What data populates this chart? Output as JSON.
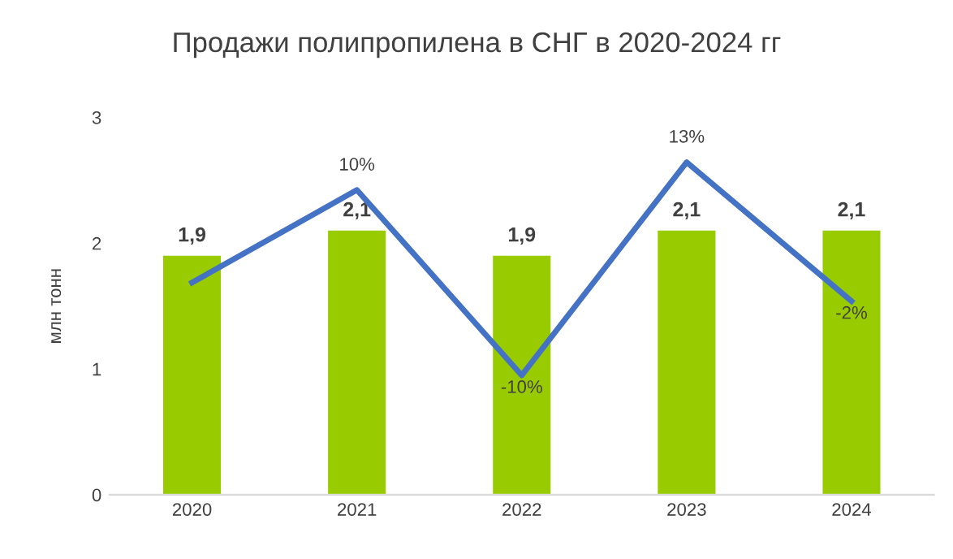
{
  "chart_data": {
    "type": "bar",
    "title": "Продажи полипропилена в СНГ в 2020-2024 гг",
    "ylabel": "млн тонн",
    "categories": [
      "2020",
      "2021",
      "2022",
      "2023",
      "2024"
    ],
    "ylim": [
      0,
      3
    ],
    "yticks": [
      0,
      1,
      2,
      3
    ],
    "grid": false,
    "legend": false,
    "series": [
      {
        "color": "#99cc00",
        "values": [
          1.9,
          2.1,
          1.9,
          2.1,
          2.1
        ],
        "value_labels": [
          "1,9",
          "2,1",
          "1,9",
          "2,1",
          "2,1"
        ]
      },
      {
        "type": "line",
        "axis": "y2",
        "color": "#4472c4",
        "values": [
          0,
          10,
          -10,
          13,
          -2
        ],
        "value_labels": [
          null,
          "10%",
          "-10%",
          "13%",
          "-2%"
        ]
      }
    ]
  }
}
